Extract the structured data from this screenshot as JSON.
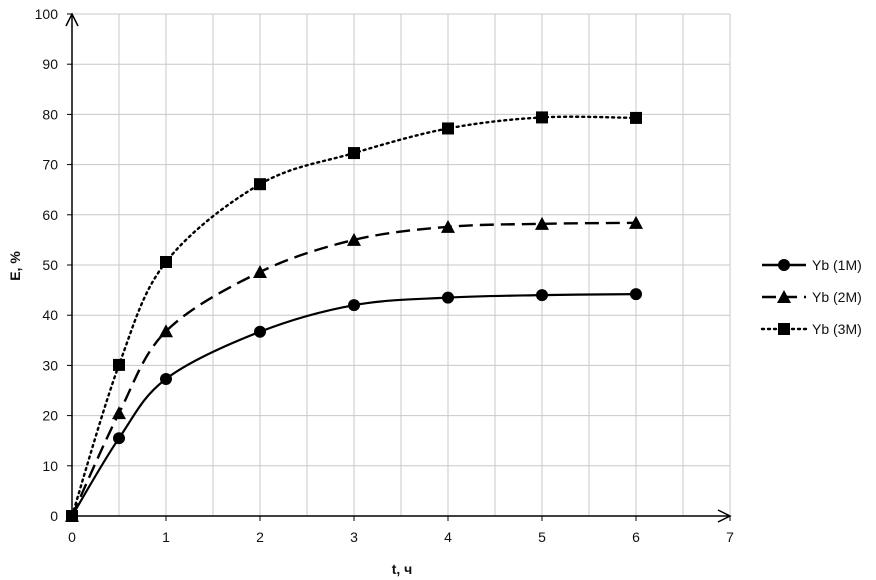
{
  "chart_data": {
    "type": "line",
    "xlabel": "t, ч",
    "ylabel": "E, %",
    "xlim": [
      0,
      7
    ],
    "ylim": [
      0,
      100
    ],
    "x_ticks": [
      "0",
      "1",
      "2",
      "3",
      "4",
      "5",
      "6",
      "7"
    ],
    "y_ticks": [
      "0",
      "10",
      "20",
      "30",
      "40",
      "50",
      "60",
      "70",
      "80",
      "90",
      "100"
    ],
    "grid": true,
    "legend_position": "right",
    "x": [
      0,
      0.5,
      1,
      2,
      3,
      4,
      5,
      6
    ],
    "series": [
      {
        "name": "Yb (1M)",
        "marker": "circle",
        "dash": "solid",
        "values": [
          0,
          15.5,
          27.3,
          36.7,
          42.0,
          43.5,
          44.0,
          44.2
        ]
      },
      {
        "name": "Yb (2M)",
        "marker": "triangle",
        "dash": "dashed",
        "values": [
          0,
          20.5,
          36.8,
          48.6,
          55.0,
          57.6,
          58.2,
          58.4
        ]
      },
      {
        "name": "Yb (3M)",
        "marker": "square",
        "dash": "dotted",
        "values": [
          0,
          30.1,
          50.6,
          66.1,
          72.3,
          77.2,
          79.4,
          79.3
        ]
      }
    ]
  }
}
